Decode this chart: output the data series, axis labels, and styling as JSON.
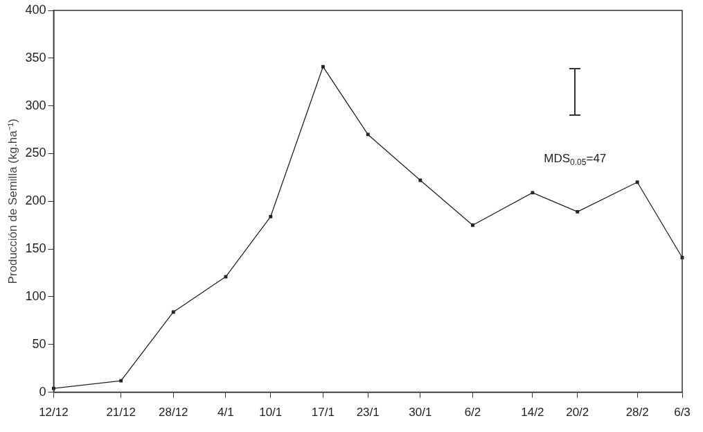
{
  "chart_data": {
    "type": "line",
    "ylabel": "Producción de Semilla (kg.ha⁻¹)",
    "categories": [
      "12/12",
      null,
      null,
      null,
      null,
      null,
      null,
      null,
      null,
      "21/12",
      null,
      null,
      null,
      null,
      null,
      null,
      "28/12",
      null,
      null,
      null,
      null,
      null,
      null,
      "4/1",
      null,
      null,
      null,
      null,
      null,
      "10/1",
      null,
      null,
      null,
      null,
      null,
      null,
      "17/1",
      null,
      null,
      null,
      null,
      null,
      "23/1",
      null,
      null,
      null,
      null,
      null,
      null,
      "30/1",
      null,
      null,
      null,
      null,
      null,
      null,
      "6/2",
      null,
      null,
      null,
      null,
      null,
      null,
      null,
      "14/2",
      null,
      null,
      null,
      null,
      null,
      "20/2",
      null,
      null,
      null,
      null,
      null,
      null,
      null,
      "28/2",
      null,
      null,
      null,
      null,
      null,
      "6/3"
    ],
    "series": [
      {
        "color": "#222222",
        "values": [
          4,
          null,
          null,
          null,
          null,
          null,
          null,
          null,
          null,
          12,
          null,
          null,
          null,
          null,
          null,
          null,
          84,
          null,
          null,
          null,
          null,
          null,
          null,
          121,
          null,
          null,
          null,
          null,
          null,
          184,
          null,
          null,
          null,
          null,
          null,
          null,
          341,
          null,
          null,
          null,
          null,
          null,
          270,
          null,
          null,
          null,
          null,
          null,
          null,
          222,
          null,
          null,
          null,
          null,
          null,
          null,
          175,
          null,
          null,
          null,
          null,
          null,
          null,
          null,
          209,
          null,
          null,
          null,
          null,
          null,
          189,
          null,
          null,
          null,
          null,
          null,
          null,
          null,
          220,
          null,
          null,
          null,
          null,
          null,
          141
        ]
      }
    ],
    "ylim": [
      0,
      400
    ],
    "yticks": [
      0,
      50,
      100,
      150,
      200,
      250,
      300,
      350,
      400
    ],
    "annotations": [
      "MDS$_{0.05}$=47"
    ],
    "grid": false,
    "legend": false,
    "marker": "square",
    "line_style": "solid"
  }
}
